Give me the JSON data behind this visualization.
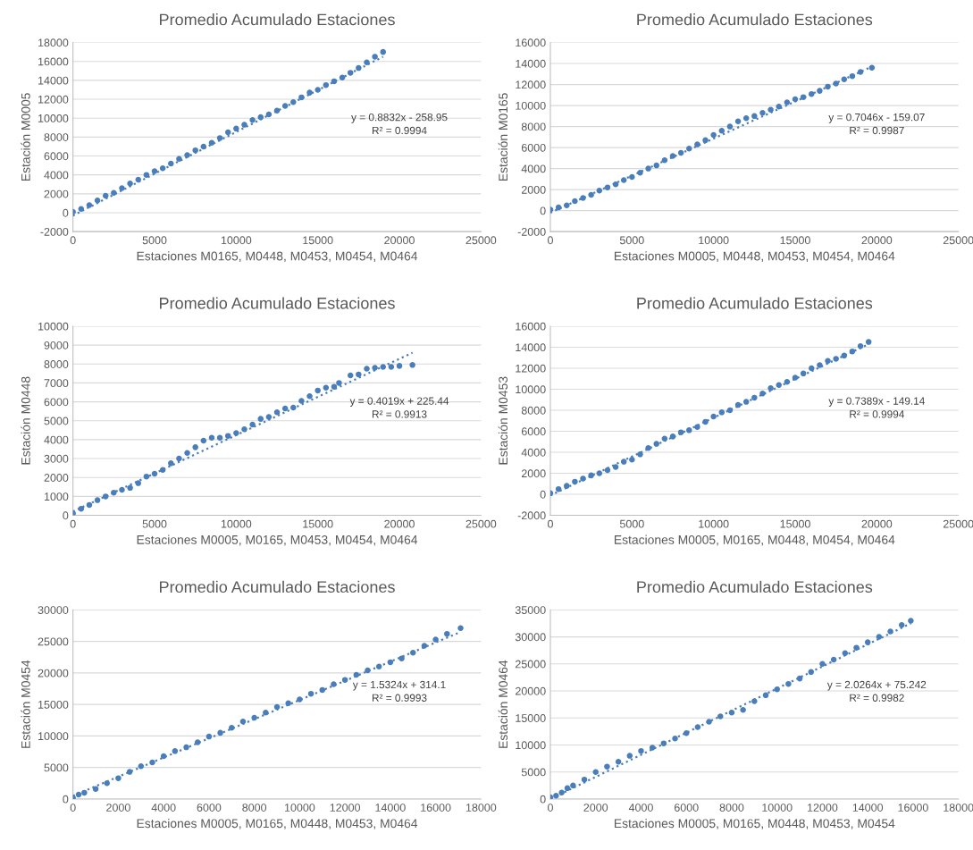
{
  "chart_data": [
    {
      "type": "scatter",
      "title": "Promedio Acumulado Estaciones",
      "xlabel": "Estaciones M0165, M0448, M0453, M0454, M0464",
      "ylabel": "Estación M0005",
      "xlim": [
        0,
        25000
      ],
      "xticks": [
        0,
        5000,
        10000,
        15000,
        20000,
        25000
      ],
      "ylim": [
        -2000,
        18000
      ],
      "yticks": [
        -2000,
        0,
        2000,
        4000,
        6000,
        8000,
        10000,
        12000,
        14000,
        16000,
        18000
      ],
      "grid": "y",
      "marker": "circle",
      "annotations": [
        "y = 0.8832x - 258.95",
        "R² = 0.9994"
      ],
      "series": [
        {
          "type": "scatter",
          "color": "#4a7ebb",
          "x": [
            0,
            500,
            1000,
            1500,
            2000,
            2500,
            3000,
            3500,
            4000,
            4500,
            5000,
            5500,
            6000,
            6500,
            7000,
            7500,
            8000,
            8500,
            9000,
            9500,
            10000,
            10500,
            11000,
            11500,
            12000,
            12500,
            13000,
            13500,
            14000,
            14500,
            15000,
            15500,
            16000,
            16500,
            17000,
            17500,
            18000,
            18500,
            19000
          ],
          "values": [
            100,
            400,
            800,
            1300,
            1800,
            2100,
            2600,
            3100,
            3500,
            4000,
            4400,
            4700,
            5200,
            5700,
            6100,
            6600,
            7000,
            7400,
            7900,
            8500,
            8900,
            9300,
            9800,
            10100,
            10400,
            10800,
            11300,
            11700,
            12200,
            12700,
            13000,
            13500,
            13900,
            14300,
            14800,
            15300,
            15900,
            16500,
            17000
          ]
        },
        {
          "type": "line",
          "color": "#4a7ebb",
          "line_style": "dotted",
          "marker": "none",
          "x": [
            0,
            19000
          ],
          "values": [
            -300,
            16500
          ]
        }
      ]
    },
    {
      "type": "scatter",
      "title": "Promedio Acumulado Estaciones",
      "xlabel": "Estaciones M0005, M0448, M0453, M0454, M0464",
      "ylabel": "Estación M0165",
      "xlim": [
        0,
        25000
      ],
      "xticks": [
        0,
        5000,
        10000,
        15000,
        20000,
        25000
      ],
      "ylim": [
        -2000,
        16000
      ],
      "yticks": [
        -2000,
        0,
        2000,
        4000,
        6000,
        8000,
        10000,
        12000,
        14000,
        16000
      ],
      "grid": "y",
      "marker": "circle",
      "annotations": [
        "y = 0.7046x - 159.07",
        "R² = 0.9987"
      ],
      "series": [
        {
          "type": "scatter",
          "color": "#4a7ebb",
          "x": [
            0,
            500,
            1000,
            1500,
            2000,
            2500,
            3000,
            3500,
            4000,
            4500,
            5000,
            5500,
            6000,
            6500,
            7000,
            7500,
            8000,
            8500,
            9000,
            9500,
            10000,
            10500,
            11000,
            11500,
            12000,
            12500,
            13000,
            13500,
            14000,
            14500,
            15000,
            15500,
            16000,
            16500,
            17000,
            17500,
            18000,
            18500,
            19000,
            19700
          ],
          "values": [
            100,
            300,
            500,
            900,
            1200,
            1500,
            1900,
            2200,
            2500,
            2900,
            3200,
            3600,
            4000,
            4300,
            4800,
            5200,
            5500,
            5900,
            6300,
            6700,
            7200,
            7600,
            8000,
            8500,
            8800,
            9000,
            9300,
            9600,
            9900,
            10300,
            10600,
            10800,
            11100,
            11400,
            11800,
            12100,
            12500,
            12800,
            13200,
            13600
          ]
        },
        {
          "type": "line",
          "color": "#4a7ebb",
          "line_style": "dotted",
          "marker": "none",
          "x": [
            0,
            19700
          ],
          "values": [
            -200,
            13700
          ]
        }
      ]
    },
    {
      "type": "scatter",
      "title": "Promedio Acumulado Estaciones",
      "xlabel": "Estaciones M0005, M0165, M0453, M0454, M0464",
      "ylabel": "Estación M0448",
      "xlim": [
        0,
        25000
      ],
      "xticks": [
        0,
        5000,
        10000,
        15000,
        20000,
        25000
      ],
      "ylim": [
        0,
        10000
      ],
      "yticks": [
        0,
        1000,
        2000,
        3000,
        4000,
        5000,
        6000,
        7000,
        8000,
        9000,
        10000
      ],
      "grid": "y",
      "marker": "circle",
      "annotations": [
        "y = 0.4019x + 225.44",
        "R² = 0.9913"
      ],
      "series": [
        {
          "type": "scatter",
          "color": "#4a7ebb",
          "x": [
            0,
            500,
            1000,
            1500,
            2000,
            2500,
            3000,
            3500,
            4000,
            4500,
            5000,
            5500,
            6000,
            6500,
            7000,
            7500,
            8000,
            8500,
            9000,
            9500,
            10000,
            10500,
            11000,
            11500,
            12000,
            12500,
            13000,
            13500,
            14000,
            14500,
            15000,
            15500,
            16000,
            16300,
            17000,
            17500,
            18000,
            18500,
            19000,
            19500,
            20000,
            20800
          ],
          "values": [
            100,
            350,
            550,
            800,
            1000,
            1200,
            1350,
            1450,
            1700,
            2050,
            2200,
            2400,
            2750,
            3000,
            3300,
            3600,
            3950,
            4100,
            4100,
            4200,
            4350,
            4550,
            4800,
            5100,
            5200,
            5450,
            5650,
            5700,
            6050,
            6300,
            6600,
            6750,
            6800,
            7000,
            7400,
            7450,
            7750,
            7800,
            7850,
            7850,
            7900,
            7950
          ]
        },
        {
          "type": "line",
          "color": "#4a7ebb",
          "line_style": "dotted",
          "marker": "none",
          "x": [
            0,
            20800
          ],
          "values": [
            200,
            8600
          ]
        }
      ]
    },
    {
      "type": "scatter",
      "title": "Promedio Acumulado Estaciones",
      "xlabel": "Estaciones M0005, M0165, M0448, M0454, M0464",
      "ylabel": "Estación M0453",
      "xlim": [
        0,
        25000
      ],
      "xticks": [
        0,
        5000,
        10000,
        15000,
        20000,
        25000
      ],
      "ylim": [
        -2000,
        16000
      ],
      "yticks": [
        -2000,
        0,
        2000,
        4000,
        6000,
        8000,
        10000,
        12000,
        14000,
        16000
      ],
      "grid": "y",
      "marker": "circle",
      "annotations": [
        "y = 0.7389x - 149.14",
        "R² = 0.9994"
      ],
      "series": [
        {
          "type": "scatter",
          "color": "#4a7ebb",
          "x": [
            0,
            500,
            1000,
            1500,
            2000,
            2500,
            3000,
            3500,
            4000,
            4500,
            5000,
            5500,
            6000,
            6500,
            7000,
            7500,
            8000,
            8500,
            9000,
            9500,
            10000,
            10500,
            11000,
            11500,
            12000,
            12500,
            13000,
            13500,
            14000,
            14500,
            15000,
            15500,
            16000,
            16500,
            17000,
            17500,
            18000,
            18500,
            19000,
            19500
          ],
          "values": [
            100,
            500,
            800,
            1200,
            1500,
            1800,
            2000,
            2300,
            2600,
            3100,
            3300,
            3800,
            4400,
            4800,
            5300,
            5500,
            5900,
            6100,
            6400,
            6900,
            7400,
            7800,
            8000,
            8500,
            8800,
            9200,
            9600,
            10100,
            10400,
            10700,
            11100,
            11500,
            12000,
            12300,
            12700,
            12900,
            13200,
            13600,
            14100,
            14500
          ]
        },
        {
          "type": "line",
          "color": "#4a7ebb",
          "line_style": "dotted",
          "marker": "none",
          "x": [
            0,
            19500
          ],
          "values": [
            -100,
            14300
          ]
        }
      ]
    },
    {
      "type": "scatter",
      "title": "Promedio Acumulado Estaciones",
      "xlabel": "Estaciones M0005, M0165, M0448, M0453, M0464",
      "ylabel": "Estación M0454",
      "xlim": [
        0,
        18000
      ],
      "xticks": [
        0,
        2000,
        4000,
        6000,
        8000,
        10000,
        12000,
        14000,
        16000,
        18000
      ],
      "ylim": [
        0,
        30000
      ],
      "yticks": [
        0,
        5000,
        10000,
        15000,
        20000,
        25000,
        30000
      ],
      "grid": "y",
      "marker": "circle",
      "annotations": [
        "y = 1.5324x + 314.1",
        "R² = 0.9993"
      ],
      "series": [
        {
          "type": "scatter",
          "color": "#4a7ebb",
          "x": [
            0,
            250,
            500,
            1000,
            1500,
            2000,
            2500,
            3000,
            3500,
            4000,
            4500,
            5000,
            5500,
            6000,
            6500,
            7000,
            7500,
            8000,
            8500,
            9000,
            9500,
            10000,
            10500,
            11000,
            11500,
            12000,
            12500,
            13000,
            13500,
            14000,
            14500,
            15000,
            15500,
            16000,
            16500,
            17100
          ],
          "values": [
            200,
            700,
            1000,
            1600,
            2500,
            3300,
            4300,
            5200,
            5800,
            6800,
            7600,
            8200,
            9000,
            9900,
            10500,
            11300,
            12300,
            12900,
            13700,
            14600,
            15200,
            15800,
            16700,
            17300,
            18200,
            18900,
            19700,
            20400,
            21000,
            21700,
            22300,
            23200,
            24300,
            25300,
            26200,
            27100
          ]
        },
        {
          "type": "line",
          "color": "#4a7ebb",
          "line_style": "dotted",
          "marker": "none",
          "x": [
            0,
            17100
          ],
          "values": [
            500,
            26500
          ]
        }
      ]
    },
    {
      "type": "scatter",
      "title": "Promedio Acumulado Estaciones",
      "xlabel": "Estaciones M0005, M0165, M0448, M0453, M0454",
      "ylabel": "Estación M0464",
      "xlim": [
        0,
        18000
      ],
      "xticks": [
        0,
        2000,
        4000,
        6000,
        8000,
        10000,
        12000,
        14000,
        16000,
        18000
      ],
      "ylim": [
        0,
        35000
      ],
      "yticks": [
        0,
        5000,
        10000,
        15000,
        20000,
        25000,
        30000,
        35000
      ],
      "grid": "y",
      "marker": "circle",
      "annotations": [
        "y = 2.0264x + 75.242",
        "R² = 0.9982"
      ],
      "series": [
        {
          "type": "scatter",
          "color": "#4a7ebb",
          "x": [
            0,
            250,
            500,
            750,
            1000,
            1500,
            2000,
            2500,
            3000,
            3500,
            4000,
            4500,
            5000,
            5500,
            6000,
            6500,
            7000,
            7500,
            8000,
            8500,
            9000,
            9500,
            10000,
            10500,
            11000,
            11500,
            12000,
            12500,
            13000,
            13500,
            14000,
            14500,
            15000,
            15500,
            15900
          ],
          "values": [
            300,
            600,
            1200,
            2000,
            2500,
            3600,
            5000,
            6000,
            6900,
            8000,
            8900,
            9500,
            10300,
            11200,
            12200,
            13300,
            14300,
            15300,
            16000,
            16500,
            18100,
            19200,
            20300,
            21300,
            22300,
            23500,
            25000,
            25800,
            27000,
            28000,
            29000,
            30000,
            31000,
            32200,
            33000
          ]
        },
        {
          "type": "line",
          "color": "#4a7ebb",
          "line_style": "dotted",
          "marker": "none",
          "x": [
            0,
            15900
          ],
          "values": [
            0,
            32500
          ]
        }
      ]
    }
  ]
}
